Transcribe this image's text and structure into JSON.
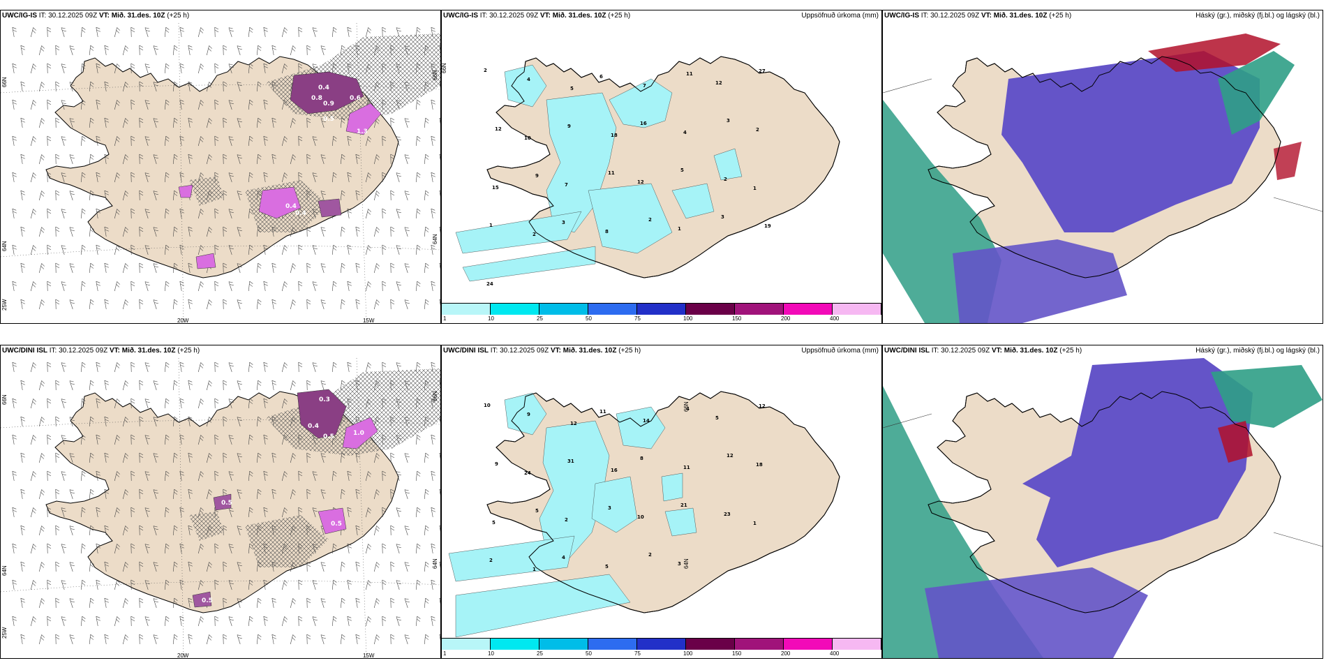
{
  "rows": [
    {
      "model": "UWC/IG-IS",
      "it": "IT: 30.12.2025 09Z",
      "vt_label": "VT:",
      "vt": "Mið. 31.des. 10Z",
      "lead": "(+25 h)"
    },
    {
      "model": "UWC/DINI ISL",
      "it": "IT: 30.12.2025 09Z",
      "vt_label": "VT:",
      "vt": "Mið. 31.des. 10Z",
      "lead": "(+25 h)"
    }
  ],
  "precip_title": "Uppsöfnuð úrkoma (mm)",
  "cloud_title": "Háský (gr.), miðský (fj.bl.) og lágský (bl.)",
  "colorbar": {
    "ticks": [
      "1",
      "10",
      "25",
      "50",
      "75",
      "100",
      "150",
      "200",
      "400"
    ],
    "colors": [
      "#b8f6f8",
      "#00e8f0",
      "#00bde8",
      "#2d6cf0",
      "#2230c8",
      "#6a0048",
      "#a0137a",
      "#f20ab8",
      "#f6b8f2"
    ]
  },
  "axis": {
    "lat_a": "66N",
    "lat_b": "64N",
    "lon_a": "20W",
    "lon_b": "15W",
    "lon_c": "25W"
  },
  "colors": {
    "land": "#ecdcc8",
    "precip": "#a6f3f7",
    "cloud_high": "#6454c8",
    "cloud_mid": "#2f9e86",
    "cloud_low": "#b2102a",
    "hail": "#d96ee0"
  },
  "precip_values_top": [
    "2",
    "4",
    "5",
    "6",
    "7",
    "11",
    "12",
    "27",
    "12",
    "10",
    "9",
    "18",
    "16",
    "4",
    "3",
    "2",
    "15",
    "9",
    "7",
    "11",
    "12",
    "5",
    "2",
    "1",
    "1",
    "2",
    "3",
    "8",
    "2",
    "1",
    "3",
    "19",
    "24"
  ],
  "precip_values_bottom": [
    "10",
    "9",
    "12",
    "11",
    "14",
    "4",
    "5",
    "12",
    "9",
    "24",
    "31",
    "16",
    "8",
    "11",
    "12",
    "18",
    "5",
    "5",
    "2",
    "3",
    "10",
    "21",
    "23",
    "1",
    "2",
    "1",
    "4",
    "5",
    "2",
    "3"
  ],
  "hail_values_top": [
    "0.4",
    "0.8",
    "0.9",
    "0.6",
    "0.5",
    "1.3",
    "0.4",
    "0.4"
  ],
  "hail_values_bottom": [
    "0.3",
    "0.4",
    "0.5",
    "1.0",
    "0.5",
    "0.5",
    "0.5"
  ]
}
